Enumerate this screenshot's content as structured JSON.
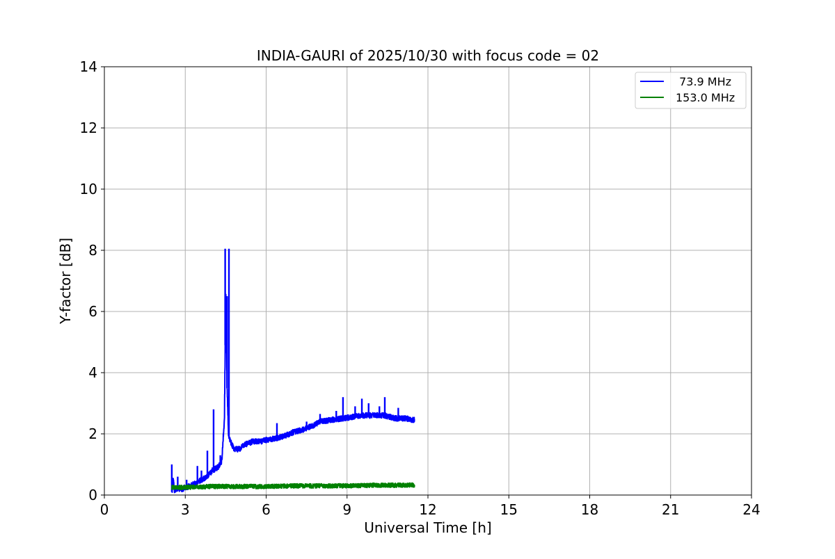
{
  "chart_data": {
    "type": "line",
    "title": "INDIA-GAURI of 2025/10/30 with focus code = 02",
    "xlabel": "Universal Time [h]",
    "ylabel": "Y-factor [dB]",
    "xlim": [
      0,
      24
    ],
    "ylim": [
      0,
      14
    ],
    "xticks": [
      0,
      3,
      6,
      9,
      12,
      15,
      18,
      21,
      24
    ],
    "yticks": [
      0,
      2,
      4,
      6,
      8,
      10,
      12,
      14
    ],
    "grid": true,
    "legend_position": "top-right",
    "series": [
      {
        "name": " 73.9 MHz",
        "color": "#0000ff",
        "noise": 0.09,
        "x": [
          2.5,
          2.55,
          2.6,
          2.7,
          2.8,
          2.9,
          3.0,
          3.2,
          3.4,
          3.6,
          3.8,
          4.0,
          4.2,
          4.35,
          4.45,
          4.5,
          4.55,
          4.6,
          4.65,
          4.7,
          4.8,
          5.0,
          5.2,
          5.5,
          5.8,
          6.0,
          6.3,
          6.6,
          7.0,
          7.4,
          7.8,
          8.0,
          8.4,
          8.8,
          9.2,
          9.6,
          10.0,
          10.4,
          10.8,
          11.2,
          11.5
        ],
        "y": [
          0.1,
          0.5,
          0.15,
          0.2,
          0.2,
          0.2,
          0.25,
          0.3,
          0.4,
          0.5,
          0.6,
          0.8,
          0.9,
          1.1,
          2.5,
          6.5,
          3.5,
          2.0,
          1.8,
          1.7,
          1.5,
          1.5,
          1.65,
          1.75,
          1.75,
          1.8,
          1.85,
          1.9,
          2.05,
          2.15,
          2.3,
          2.4,
          2.45,
          2.5,
          2.55,
          2.6,
          2.6,
          2.6,
          2.5,
          2.5,
          2.45
        ],
        "spikes": [
          {
            "x": 2.5,
            "y": 1.0
          },
          {
            "x": 2.72,
            "y": 0.6
          },
          {
            "x": 3.05,
            "y": 0.5
          },
          {
            "x": 3.45,
            "y": 0.95
          },
          {
            "x": 3.6,
            "y": 0.8
          },
          {
            "x": 3.82,
            "y": 1.45
          },
          {
            "x": 4.05,
            "y": 2.8
          },
          {
            "x": 4.3,
            "y": 1.3
          },
          {
            "x": 4.48,
            "y": 8.05
          },
          {
            "x": 4.62,
            "y": 8.05
          },
          {
            "x": 4.55,
            "y": 6.5
          },
          {
            "x": 6.4,
            "y": 2.35
          },
          {
            "x": 7.5,
            "y": 2.4
          },
          {
            "x": 8.0,
            "y": 2.65
          },
          {
            "x": 8.6,
            "y": 2.75
          },
          {
            "x": 8.85,
            "y": 3.2
          },
          {
            "x": 9.3,
            "y": 2.9
          },
          {
            "x": 9.55,
            "y": 3.15
          },
          {
            "x": 9.8,
            "y": 3.0
          },
          {
            "x": 10.2,
            "y": 2.9
          },
          {
            "x": 10.4,
            "y": 3.2
          },
          {
            "x": 10.9,
            "y": 2.85
          }
        ]
      },
      {
        "name": "153.0 MHz",
        "color": "#008000",
        "noise": 0.07,
        "x": [
          2.5,
          3.0,
          4.0,
          5.0,
          6.0,
          7.0,
          8.0,
          9.0,
          10.0,
          11.0,
          11.5
        ],
        "y": [
          0.25,
          0.25,
          0.28,
          0.28,
          0.28,
          0.3,
          0.3,
          0.3,
          0.32,
          0.32,
          0.33
        ],
        "spikes": []
      }
    ]
  }
}
